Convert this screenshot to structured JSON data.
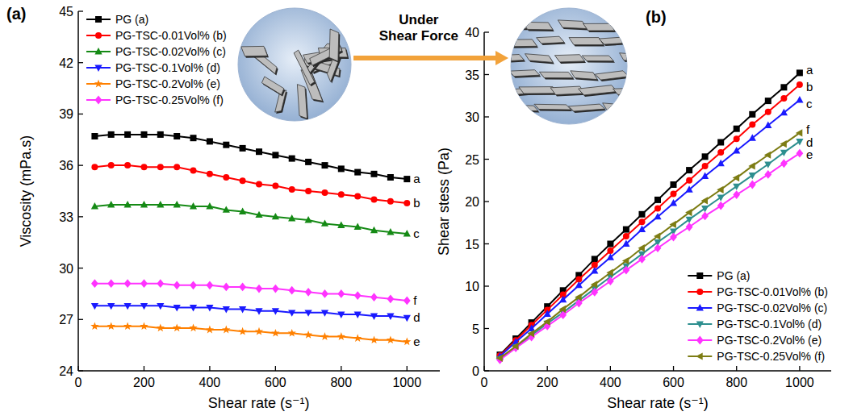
{
  "chart_data": [
    {
      "type": "line",
      "title": "(a)",
      "x_label": "Shear rate (s⁻¹)",
      "y_label": "Viscosity (mPa.s)",
      "x": [
        50,
        100,
        150,
        200,
        250,
        300,
        350,
        400,
        450,
        500,
        550,
        600,
        650,
        700,
        750,
        800,
        850,
        900,
        950,
        1000
      ],
      "series": [
        {
          "name": "PG (a)",
          "color": "#000000",
          "marker": "square",
          "values": [
            37.7,
            37.8,
            37.8,
            37.8,
            37.8,
            37.7,
            37.6,
            37.4,
            37.2,
            37.0,
            36.8,
            36.6,
            36.4,
            36.2,
            36.0,
            35.8,
            35.6,
            35.5,
            35.3,
            35.2
          ]
        },
        {
          "name": "PG-TSC-0.01Vol% (b)",
          "color": "#ff0000",
          "marker": "circle",
          "values": [
            35.9,
            36.0,
            36.0,
            35.9,
            35.9,
            35.9,
            35.7,
            35.5,
            35.3,
            35.1,
            34.9,
            34.8,
            34.6,
            34.5,
            34.4,
            34.3,
            34.2,
            34.0,
            33.9,
            33.8
          ]
        },
        {
          "name": "PG-TSC-0.02Vol% (c)",
          "color": "#158a15",
          "marker": "triangle-up",
          "values": [
            33.6,
            33.7,
            33.7,
            33.7,
            33.7,
            33.7,
            33.6,
            33.6,
            33.4,
            33.3,
            33.1,
            33.0,
            32.9,
            32.8,
            32.6,
            32.5,
            32.4,
            32.2,
            32.1,
            32.0
          ]
        },
        {
          "name": "PG-TSC-0.1Vol% (d)",
          "color": "#1a1aff",
          "marker": "triangle-down",
          "values": [
            27.8,
            27.8,
            27.8,
            27.8,
            27.8,
            27.7,
            27.7,
            27.7,
            27.6,
            27.6,
            27.5,
            27.5,
            27.4,
            27.4,
            27.4,
            27.3,
            27.3,
            27.2,
            27.2,
            27.1
          ]
        },
        {
          "name": "PG-TSC-0.2Vol% (e)",
          "color": "#ff8000",
          "marker": "star",
          "values": [
            26.6,
            26.6,
            26.6,
            26.6,
            26.5,
            26.5,
            26.5,
            26.4,
            26.4,
            26.3,
            26.3,
            26.2,
            26.2,
            26.1,
            26.0,
            26.0,
            25.9,
            25.8,
            25.8,
            25.7
          ]
        },
        {
          "name": "PG-TSC-0.25Vol% (f)",
          "color": "#ff33ff",
          "marker": "diamond",
          "values": [
            29.1,
            29.1,
            29.1,
            29.1,
            29.1,
            29.0,
            29.0,
            29.0,
            28.9,
            28.9,
            28.8,
            28.8,
            28.7,
            28.6,
            28.5,
            28.5,
            28.4,
            28.3,
            28.2,
            28.1
          ]
        }
      ],
      "xlim": [
        0,
        1100
      ],
      "xticks": [
        0,
        200,
        400,
        600,
        800,
        1000
      ],
      "ylim": [
        24,
        45
      ],
      "yticks": [
        24,
        27,
        30,
        33,
        36,
        39,
        42,
        45
      ],
      "grid": false,
      "legend": "top-left",
      "annotations": [
        {
          "text": "a",
          "x": 1000,
          "y": 35.2
        },
        {
          "text": "b",
          "x": 1000,
          "y": 33.8
        },
        {
          "text": "c",
          "x": 1000,
          "y": 32.0
        },
        {
          "text": "d",
          "x": 1000,
          "y": 27.1
        },
        {
          "text": "e",
          "x": 1000,
          "y": 25.7
        },
        {
          "text": "f",
          "x": 1000,
          "y": 28.1
        }
      ]
    },
    {
      "type": "line",
      "title": "(b)",
      "x_label": "Shear rate (s⁻¹)",
      "y_label": "Shear stess (Pa)",
      "x": [
        50,
        100,
        150,
        200,
        250,
        300,
        350,
        400,
        450,
        500,
        550,
        600,
        650,
        700,
        750,
        800,
        850,
        900,
        950,
        1000
      ],
      "series": [
        {
          "name": "PG (a)",
          "color": "#000000",
          "marker": "square",
          "values": [
            1.9,
            3.8,
            5.7,
            7.6,
            9.5,
            11.3,
            13.2,
            15.0,
            16.7,
            18.5,
            20.2,
            22.0,
            23.7,
            25.3,
            27.0,
            28.6,
            30.3,
            31.9,
            33.5,
            35.2
          ]
        },
        {
          "name": "PG-TSC-0.01Vol% (b)",
          "color": "#ff0000",
          "marker": "circle",
          "values": [
            1.8,
            3.6,
            5.4,
            7.2,
            9.0,
            10.8,
            12.5,
            14.2,
            15.9,
            17.6,
            19.2,
            20.9,
            22.5,
            24.2,
            25.8,
            27.4,
            29.1,
            30.6,
            32.2,
            33.8
          ]
        },
        {
          "name": "PG-TSC-0.02Vol% (c)",
          "color": "#1a1aff",
          "marker": "triangle-up",
          "values": [
            1.7,
            3.4,
            5.0,
            6.7,
            8.4,
            10.1,
            11.8,
            13.4,
            15.0,
            16.7,
            18.2,
            19.8,
            21.4,
            23.0,
            24.5,
            26.0,
            27.5,
            29.0,
            30.5,
            32.0
          ]
        },
        {
          "name": "PG-TSC-0.1Vol% (d)",
          "color": "#2e8f8f",
          "marker": "triangle-down",
          "values": [
            1.4,
            2.8,
            4.2,
            5.6,
            6.9,
            8.3,
            9.7,
            11.1,
            12.4,
            13.8,
            15.2,
            16.5,
            17.9,
            19.2,
            20.5,
            21.8,
            23.1,
            24.4,
            25.8,
            27.1
          ]
        },
        {
          "name": "PG-TSC-0.2Vol% (e)",
          "color": "#ff33ff",
          "marker": "diamond",
          "values": [
            1.3,
            2.7,
            4.0,
            5.3,
            6.6,
            8.0,
            9.3,
            10.6,
            11.9,
            13.2,
            14.5,
            15.8,
            17.0,
            18.3,
            19.5,
            20.8,
            22.0,
            23.2,
            24.5,
            25.7
          ]
        },
        {
          "name": "PG-TSC-0.25Vol% (f)",
          "color": "#7d7d14",
          "marker": "triangle-left",
          "values": [
            1.5,
            2.9,
            4.4,
            5.8,
            7.3,
            8.7,
            10.2,
            11.6,
            13.0,
            14.5,
            15.9,
            17.3,
            18.7,
            20.1,
            21.4,
            22.8,
            24.2,
            25.5,
            26.8,
            28.1
          ]
        }
      ],
      "xlim": [
        0,
        1100
      ],
      "xticks": [
        0,
        200,
        400,
        600,
        800,
        1000
      ],
      "ylim": [
        0,
        40
      ],
      "yticks": [
        0,
        5,
        10,
        15,
        20,
        25,
        30,
        35,
        40
      ],
      "grid": false,
      "legend": "bottom-right",
      "annotations": [
        {
          "text": "a",
          "x": 1000,
          "y": 35.5
        },
        {
          "text": "b",
          "x": 1000,
          "y": 33.5
        },
        {
          "text": "c",
          "x": 1000,
          "y": 31.5
        },
        {
          "text": "f",
          "x": 1000,
          "y": 28.5
        },
        {
          "text": "d",
          "x": 1000,
          "y": 27.0
        },
        {
          "text": "e",
          "x": 1000,
          "y": 25.5
        }
      ]
    }
  ],
  "diagram": {
    "label": "Under Shear Force"
  }
}
